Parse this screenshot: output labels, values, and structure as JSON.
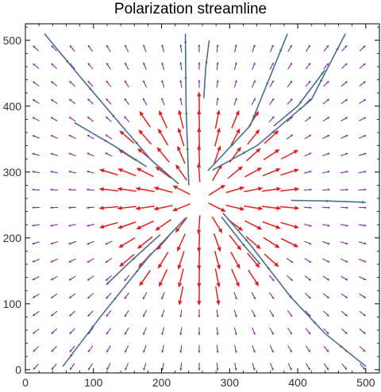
{
  "chart_data": {
    "type": "vector_field",
    "title": "Polarization streamline",
    "xlabel": "",
    "ylabel": "",
    "xlim": [
      0,
      520
    ],
    "ylim": [
      -5,
      525
    ],
    "x_ticks": [
      0,
      100,
      200,
      300,
      400,
      500
    ],
    "y_ticks": [
      0,
      100,
      200,
      300,
      400,
      500
    ],
    "grid": false,
    "field": {
      "grid_x_start": 15,
      "grid_x_step": 26.7,
      "grid_x_count": 19,
      "grid_y_start": 4,
      "grid_y_step": 26.9,
      "grid_y_count": 19,
      "center": [
        258,
        258
      ],
      "max_radius": 150
    },
    "colors": {
      "near_arrows": "#e02020",
      "far_arrows": "#8a2aa8",
      "streamlines": "#4a6e8c",
      "axes": "#000000"
    },
    "streamlines": [
      {
        "points": [
          [
            28,
            510
          ],
          [
            80,
            445
          ],
          [
            140,
            372
          ],
          [
            185,
            318
          ],
          [
            225,
            282
          ]
        ]
      },
      {
        "points": [
          [
            72,
            375
          ],
          [
            130,
            340
          ],
          [
            178,
            308
          ]
        ]
      },
      {
        "points": [
          [
            240,
            280
          ],
          [
            236,
            400
          ],
          [
            235,
            510
          ]
        ]
      },
      {
        "points": [
          [
            262,
            412
          ],
          [
            265,
            460
          ],
          [
            270,
            500
          ]
        ]
      },
      {
        "points": [
          [
            268,
            302
          ],
          [
            330,
            370
          ],
          [
            385,
            510
          ]
        ]
      },
      {
        "points": [
          [
            275,
            303
          ],
          [
            340,
            340
          ],
          [
            420,
            410
          ],
          [
            470,
            510
          ]
        ]
      },
      {
        "points": [
          [
            365,
            370
          ],
          [
            400,
            400
          ],
          [
            440,
            455
          ]
        ]
      },
      {
        "points": [
          [
            390,
            257
          ],
          [
            445,
            256
          ],
          [
            500,
            254
          ]
        ]
      },
      {
        "points": [
          [
            290,
            238
          ],
          [
            330,
            190
          ],
          [
            390,
            110
          ],
          [
            440,
            55
          ],
          [
            500,
            5
          ]
        ]
      },
      {
        "points": [
          [
            288,
            232
          ],
          [
            320,
            190
          ],
          [
            345,
            160
          ]
        ]
      },
      {
        "points": [
          [
            235,
            230
          ],
          [
            180,
            170
          ],
          [
            110,
            80
          ],
          [
            55,
            5
          ]
        ]
      },
      {
        "points": [
          [
            198,
            205
          ],
          [
            150,
            160
          ],
          [
            120,
            130
          ]
        ]
      }
    ]
  }
}
